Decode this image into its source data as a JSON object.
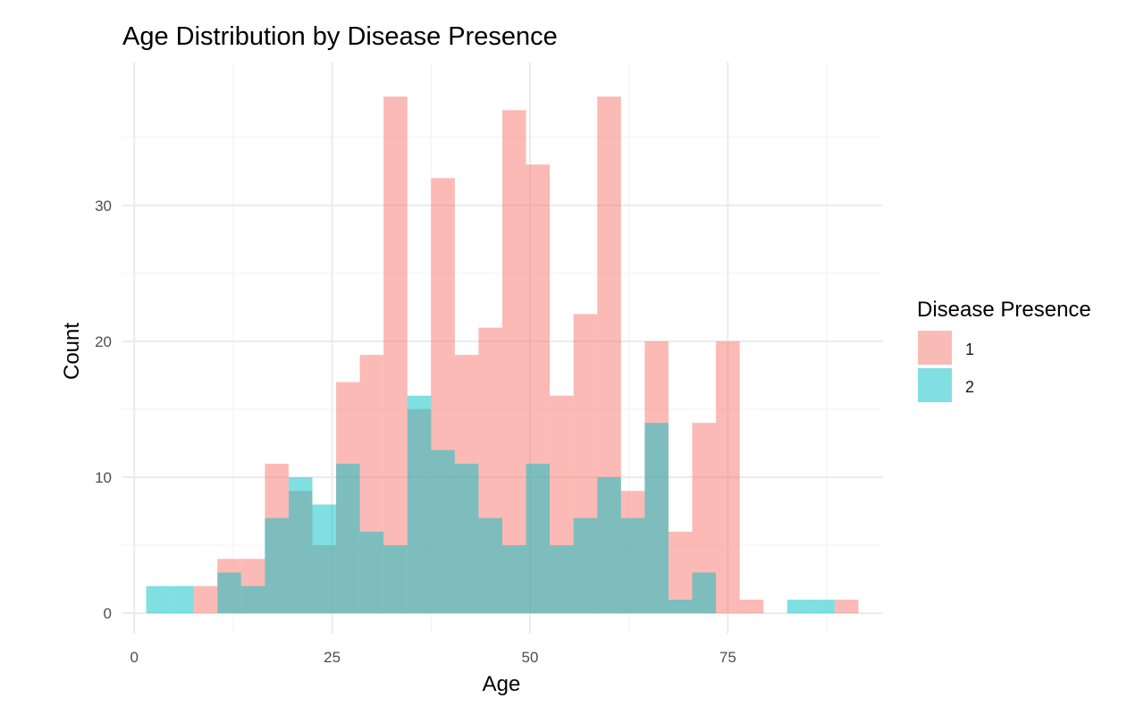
{
  "chart_data": {
    "type": "bar",
    "subtype": "histogram-overlay",
    "title": "Age Distribution by Disease Presence",
    "xlabel": "Age",
    "ylabel": "Count",
    "xlim": [
      -1.5,
      94.5
    ],
    "ylim": [
      -1.5,
      40.5
    ],
    "x_ticks": [
      0,
      25,
      50,
      75
    ],
    "x_tick_labels": [
      "0",
      "25",
      "50",
      "75"
    ],
    "y_ticks": [
      0,
      10,
      20,
      30
    ],
    "y_tick_labels": [
      "0",
      "10",
      "20",
      "30"
    ],
    "grid": true,
    "legend": {
      "title": "Disease Presence",
      "position": "right"
    },
    "bin_starts": [
      1.5,
      4.5,
      7.5,
      10.5,
      13.5,
      16.5,
      19.5,
      22.5,
      25.5,
      28.5,
      31.5,
      34.5,
      37.5,
      40.5,
      43.5,
      46.5,
      49.5,
      52.5,
      55.5,
      58.5,
      61.5,
      64.5,
      67.5,
      70.5,
      73.5,
      76.5,
      79.5,
      82.5,
      85.5,
      88.5
    ],
    "bin_width": 3,
    "series": [
      {
        "name": "1",
        "color": "#F8766D",
        "values": [
          0,
          0,
          2,
          4,
          4,
          11,
          9,
          5,
          17,
          19,
          38,
          15,
          32,
          19,
          21,
          37,
          33,
          16,
          22,
          38,
          9,
          20,
          6,
          14,
          20,
          1,
          0,
          0,
          0,
          1
        ]
      },
      {
        "name": "2",
        "color": "#00BFC4",
        "values": [
          2,
          2,
          0,
          3,
          2,
          7,
          10,
          8,
          11,
          6,
          5,
          16,
          12,
          11,
          7,
          5,
          11,
          5,
          7,
          10,
          7,
          14,
          1,
          3,
          0,
          0,
          0,
          1,
          1,
          0
        ]
      }
    ],
    "overlap_color": "#84BAB8",
    "opacity": 0.5
  }
}
